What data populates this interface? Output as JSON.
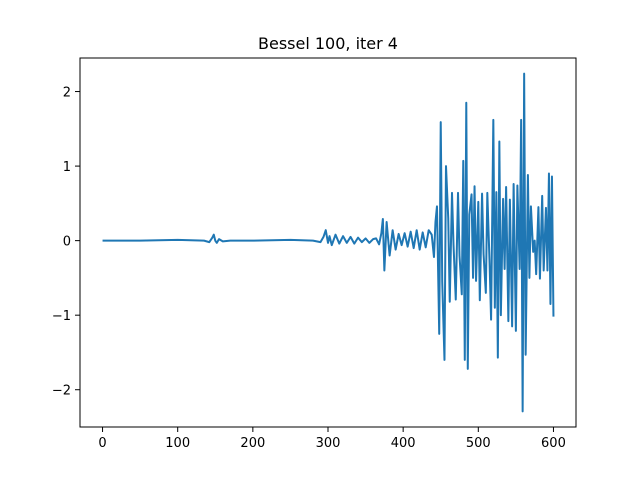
{
  "chart_data": {
    "type": "line",
    "title": "Bessel 100, iter 4",
    "xlabel": "",
    "ylabel": "",
    "xlim": [
      -30,
      630
    ],
    "ylim": [
      -2.5,
      2.45
    ],
    "xticks": [
      0,
      100,
      200,
      300,
      400,
      500,
      600
    ],
    "xtick_labels": [
      "0",
      "100",
      "200",
      "300",
      "400",
      "500",
      "600"
    ],
    "yticks": [
      -2,
      -1,
      0,
      1,
      2
    ],
    "ytick_labels": [
      "−2",
      "−1",
      "0",
      "1",
      "2"
    ],
    "grid": false,
    "series": [
      {
        "color": "#1f77b4",
        "x": [
          0,
          50,
          100,
          135,
          142,
          146,
          148,
          150,
          152,
          155,
          160,
          170,
          200,
          250,
          280,
          290,
          294,
          297,
          300,
          302,
          305,
          310,
          315,
          320,
          325,
          330,
          335,
          340,
          345,
          350,
          355,
          360,
          364,
          368,
          371,
          373,
          375,
          378,
          382,
          386,
          390,
          394,
          398,
          402,
          406,
          410,
          414,
          418,
          422,
          426,
          430,
          434,
          438,
          441,
          443,
          445,
          448,
          450,
          452,
          455,
          457,
          460,
          462,
          465,
          467,
          470,
          473,
          475,
          478,
          480,
          482,
          484,
          486,
          488,
          491,
          493,
          495,
          497,
          500,
          502,
          505,
          507,
          510,
          512,
          515,
          517,
          520,
          522,
          524,
          526,
          528,
          530,
          533,
          535,
          537,
          540,
          542,
          545,
          547,
          550,
          552,
          555,
          557,
          559,
          561,
          563,
          566,
          568,
          570,
          573,
          575,
          577,
          580,
          582,
          585,
          587,
          590,
          592,
          594,
          596,
          598,
          600
        ],
        "values": [
          0.0,
          0.0,
          0.01,
          0.0,
          -0.02,
          0.04,
          0.08,
          0.0,
          -0.03,
          0.02,
          -0.01,
          0.0,
          0.0,
          0.01,
          0.0,
          -0.02,
          0.05,
          0.14,
          -0.03,
          0.06,
          -0.06,
          0.08,
          -0.04,
          0.06,
          -0.03,
          0.05,
          -0.04,
          0.04,
          -0.02,
          0.03,
          -0.03,
          0.02,
          0.03,
          -0.05,
          0.1,
          0.29,
          -0.4,
          0.25,
          -0.2,
          0.14,
          -0.12,
          0.09,
          -0.06,
          0.1,
          -0.08,
          0.12,
          -0.1,
          0.14,
          -0.12,
          0.11,
          -0.09,
          0.14,
          0.08,
          -0.22,
          0.25,
          0.46,
          -1.25,
          1.59,
          -0.55,
          -1.6,
          1.0,
          0.3,
          -0.82,
          0.64,
          -0.05,
          -0.79,
          0.64,
          -0.2,
          -0.72,
          1.07,
          -1.6,
          1.85,
          -1.72,
          0.35,
          0.62,
          -0.5,
          0.73,
          -0.54,
          0.52,
          -0.8,
          0.63,
          -0.18,
          -0.7,
          0.64,
          -0.3,
          -1.06,
          1.62,
          -0.9,
          0.65,
          -1.57,
          1.33,
          -1.0,
          0.56,
          -0.38,
          0.72,
          -1.08,
          0.55,
          -1.15,
          0.76,
          -1.21,
          0.74,
          -0.38,
          1.62,
          -2.29,
          2.24,
          -1.53,
          0.88,
          -0.5,
          0.46,
          -0.15,
          0.0,
          -0.45,
          0.45,
          -0.51,
          0.6,
          -0.4,
          0.44,
          -0.4,
          0.9,
          -0.85,
          0.86,
          -1.02
        ]
      }
    ]
  }
}
